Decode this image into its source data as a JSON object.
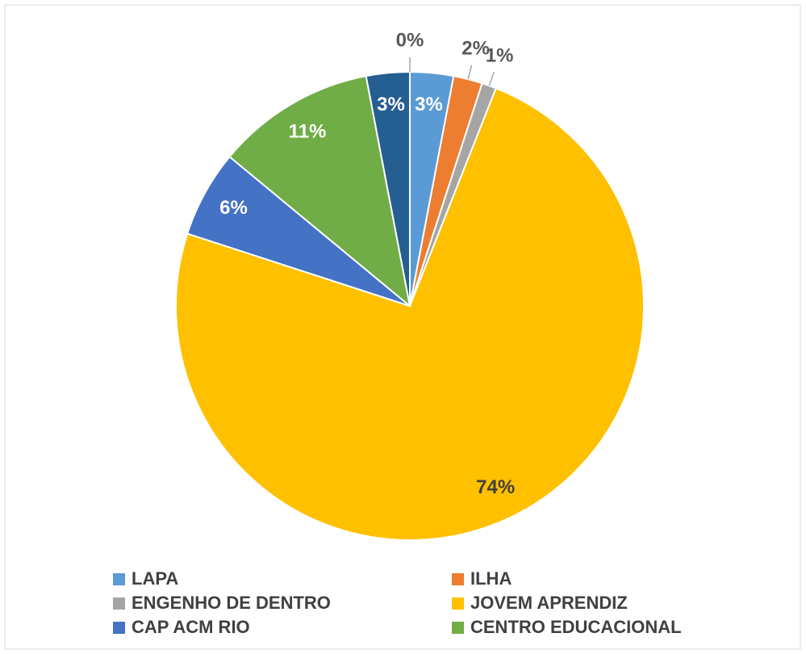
{
  "chart_data": {
    "type": "pie",
    "categories": [
      "LAPA",
      "ILHA",
      "ENGENHO DE DENTRO",
      "JOVEM APRENDIZ",
      "CAP ACM RIO",
      "CENTRO EDUCACIONAL",
      null,
      null
    ],
    "values": [
      3,
      2,
      1,
      74,
      6,
      11,
      3,
      0
    ],
    "value_labels": [
      "3%",
      "2%",
      "1%",
      "74%",
      "6%",
      "11%",
      "3%",
      "0%"
    ],
    "colors": [
      "#5b9bd5",
      "#ed7d31",
      "#a5a5a5",
      "#ffc000",
      "#4472c4",
      "#70ad47",
      "#255e91",
      "#9e480e"
    ],
    "legend": "bottom"
  }
}
